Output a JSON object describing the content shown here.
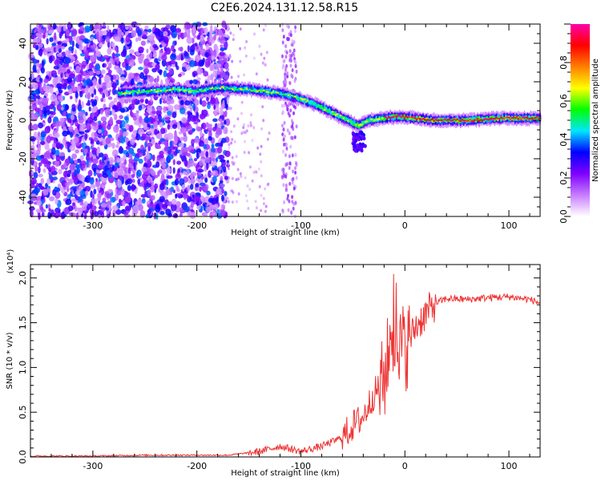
{
  "title": "C2E6.2024.131.12.58.R15",
  "chart_data": [
    {
      "type": "heatmap",
      "xlabel": "Height of straight line (km)",
      "ylabel": "Frequency (Hz)",
      "xlim": [
        -360,
        130
      ],
      "ylim": [
        -50,
        50
      ],
      "x_ticks": [
        -300,
        -200,
        -100,
        0,
        100
      ],
      "y_ticks": [
        -40,
        -20,
        0,
        20,
        40
      ],
      "colorbar": {
        "label": "Normalized spectral amplitude",
        "range": [
          0,
          1
        ],
        "ticks": [
          "0.0",
          "0.2",
          "0.4",
          "0.6",
          "0.8"
        ],
        "colors": [
          "#ffffff",
          "#c87dff",
          "#7f00ff",
          "#0000ff",
          "#00e5ff",
          "#00ff00",
          "#ffff00",
          "#ff7f00",
          "#ff0000",
          "#ff00aa"
        ]
      },
      "ridge": {
        "x": [
          -275,
          -250,
          -220,
          -200,
          -180,
          -150,
          -120,
          -100,
          -85,
          -70,
          -55,
          -45,
          -35,
          -20,
          -5,
          10,
          30,
          60,
          90,
          130
        ],
        "y": [
          14,
          15,
          16,
          15,
          17,
          16,
          14,
          11,
          8,
          4,
          0,
          -3,
          0,
          1,
          2,
          1,
          0,
          0,
          1,
          1
        ]
      },
      "noise_region": [
        -360,
        -170
      ]
    },
    {
      "type": "line",
      "xlabel": "Height of straight line (km)",
      "ylabel": "SNR (10 * v/v)",
      "multiplier": "(x10⁴)",
      "xlim": [
        -360,
        130
      ],
      "ylim": [
        0,
        2.15
      ],
      "x_ticks": [
        -300,
        -200,
        -100,
        0,
        100
      ],
      "y_ticks": [
        "0.0",
        "0.5",
        "1.0",
        "1.5",
        "2.0"
      ],
      "color": "#ee3333",
      "series": [
        {
          "x": [
            -360,
            -300,
            -250,
            -200,
            -170,
            -140,
            -120,
            -100,
            -80,
            -60,
            -50,
            -40,
            -30,
            -20,
            -15,
            -10,
            -5,
            0,
            10,
            20,
            30,
            40,
            60,
            80,
            100,
            120,
            130
          ],
          "y": [
            0.01,
            0.01,
            0.02,
            0.02,
            0.02,
            0.06,
            0.12,
            0.06,
            0.12,
            0.22,
            0.35,
            0.45,
            0.7,
            0.85,
            1.2,
            1.35,
            1.3,
            1.2,
            1.45,
            1.6,
            1.72,
            1.77,
            1.76,
            1.78,
            1.79,
            1.76,
            1.72
          ]
        }
      ]
    }
  ]
}
